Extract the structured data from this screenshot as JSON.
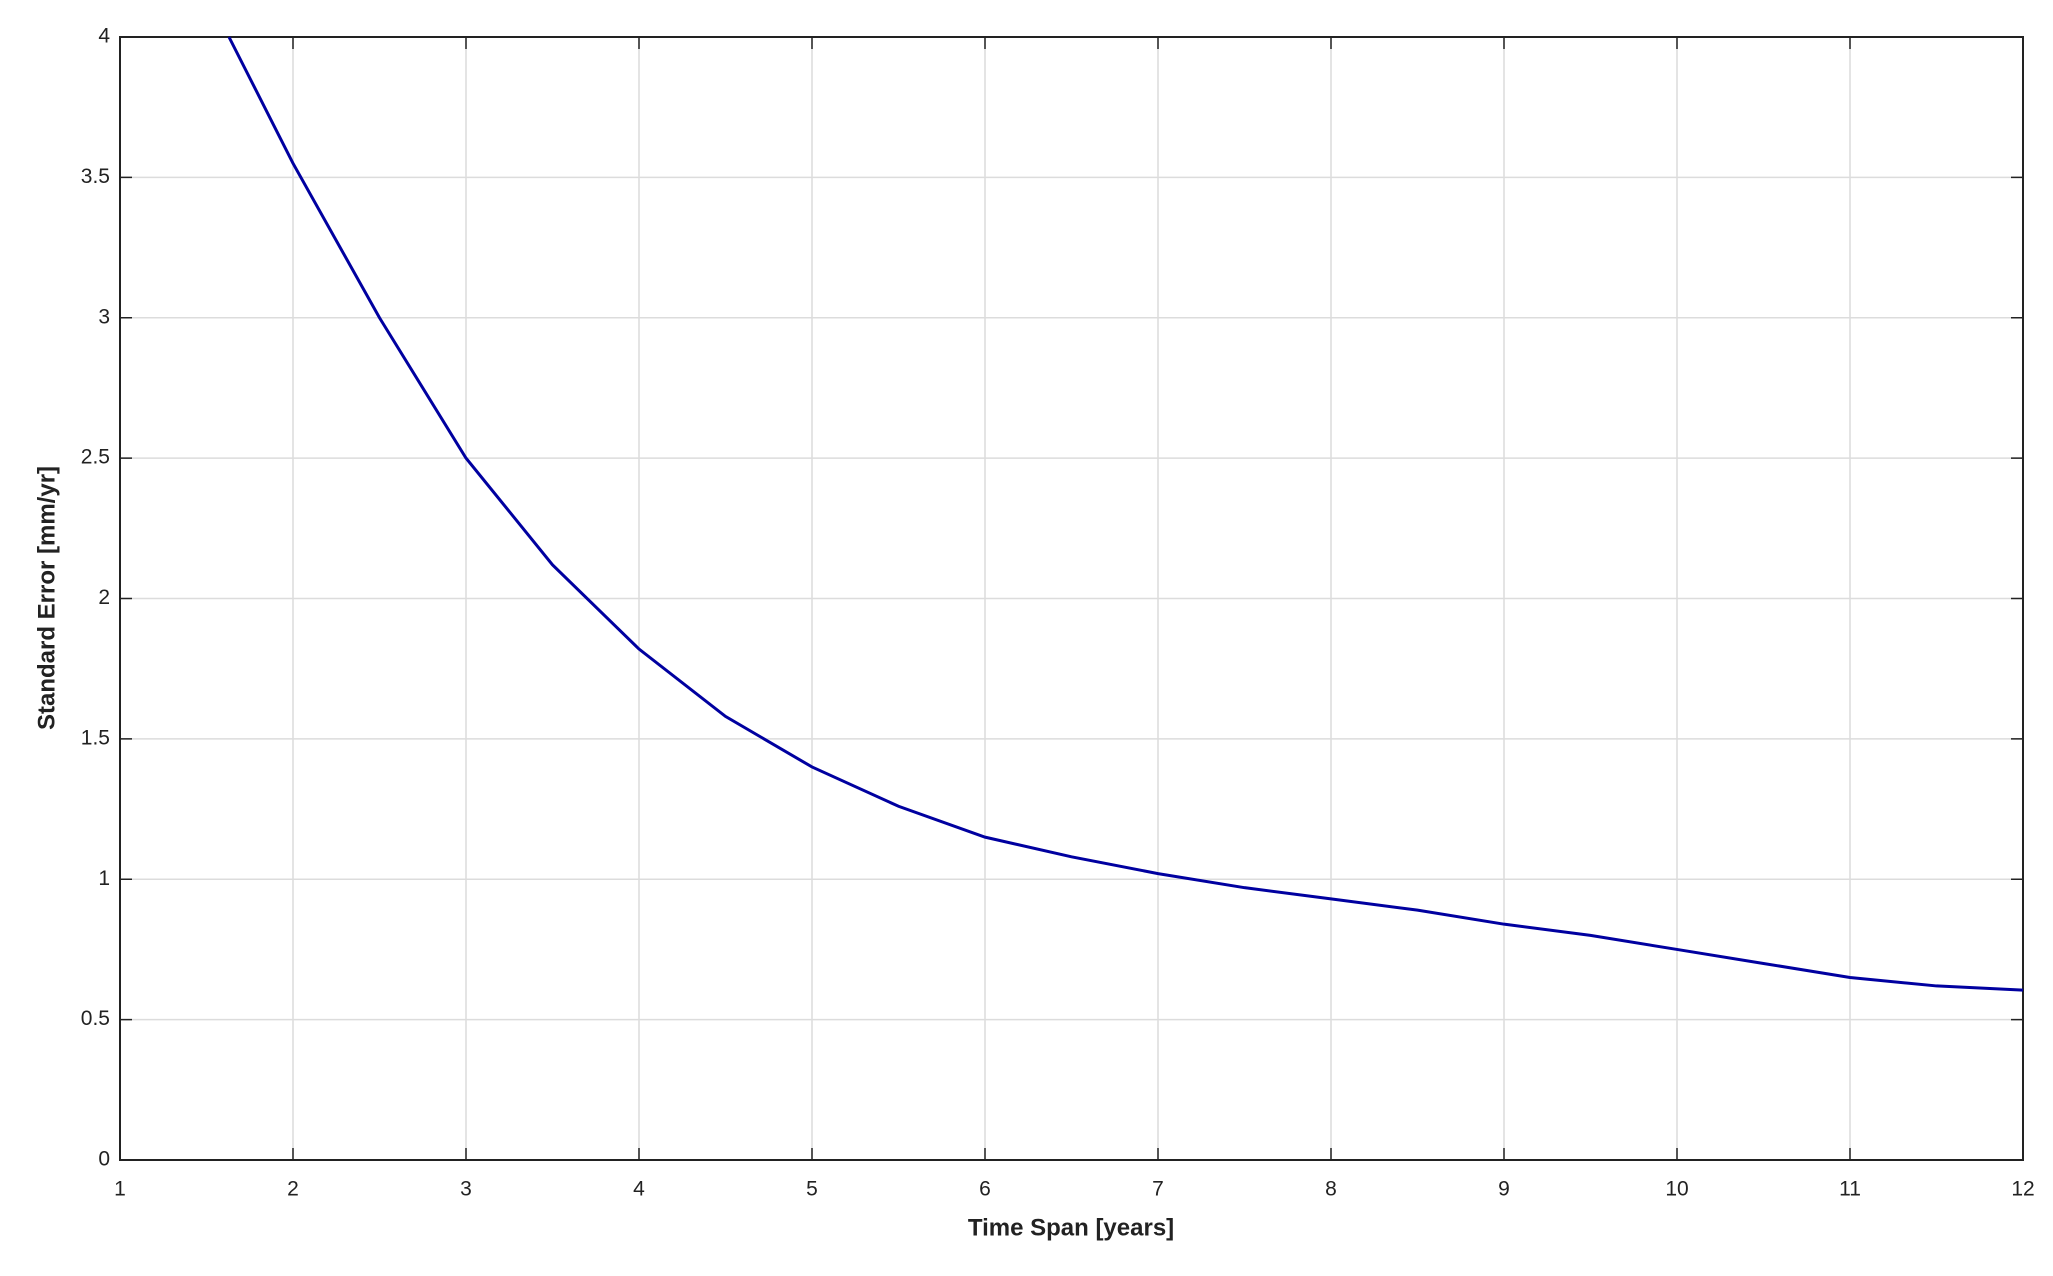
{
  "chart_data": {
    "type": "line",
    "x_label": "Time Span [years]",
    "y_label": "Standard Error [mm/yr]",
    "x": [
      1.63,
      2,
      2.5,
      3,
      3.5,
      4,
      4.5,
      5,
      5.5,
      6,
      6.5,
      7,
      7.5,
      8,
      8.5,
      9,
      9.5,
      10,
      10.5,
      11,
      11.5,
      12
    ],
    "series": [
      {
        "color": "#0000a0",
        "values": [
          4.0,
          3.55,
          3.0,
          2.5,
          2.12,
          1.82,
          1.58,
          1.4,
          1.26,
          1.15,
          1.08,
          1.02,
          0.97,
          0.93,
          0.89,
          0.84,
          0.8,
          0.75,
          0.7,
          0.65,
          0.62,
          0.605
        ]
      }
    ],
    "xlim": [
      1,
      12
    ],
    "ylim": [
      0,
      4
    ],
    "xticks": [
      1,
      2,
      3,
      4,
      5,
      6,
      7,
      8,
      9,
      10,
      11,
      12
    ],
    "yticks": [
      0,
      0.5,
      1,
      1.5,
      2,
      2.5,
      3,
      3.5,
      4
    ],
    "grid": true
  }
}
